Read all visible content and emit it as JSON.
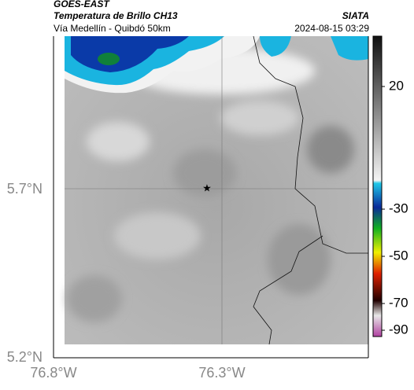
{
  "header": {
    "source": "GOES-EAST",
    "title": "Temperatura de Brillo CH13",
    "route": "Vía Medellín - Quibdó 50km",
    "brand": "SIATA",
    "timestamp": "2024-08-15 03:29"
  },
  "axes": {
    "lat_labels": [
      "5.7°N",
      "5.2°N"
    ],
    "lon_labels": [
      "76.8°W",
      "76.3°W"
    ]
  },
  "colorbar": {
    "tick_labels": [
      "20",
      "-30",
      "-50",
      "-70",
      "-90"
    ]
  }
}
